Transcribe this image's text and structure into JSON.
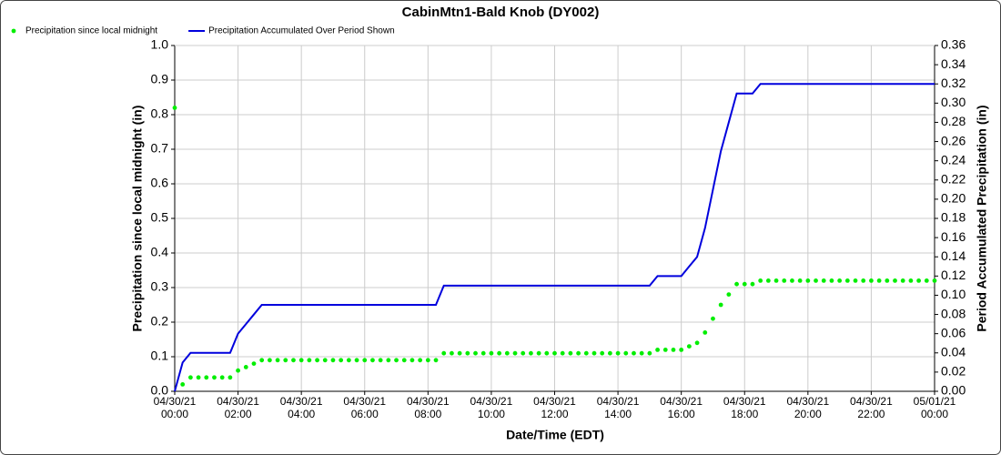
{
  "chart_data": {
    "type": "line",
    "title": "CabinMtn1-Bald Knob (DY002)",
    "x_label": "Date/Time (EDT)",
    "y_label": "Precipitation since local midnight (in)",
    "y2_label": "Period Accumulated Precipitation (in)",
    "grid": true,
    "legend": "top-left",
    "x": [
      "04/30/21 00:00",
      "04/30/21 00:15",
      "04/30/21 00:30",
      "04/30/21 00:45",
      "04/30/21 01:00",
      "04/30/21 01:15",
      "04/30/21 01:30",
      "04/30/21 01:45",
      "04/30/21 02:00",
      "04/30/21 02:15",
      "04/30/21 02:30",
      "04/30/21 02:45",
      "04/30/21 03:00",
      "04/30/21 03:15",
      "04/30/21 03:30",
      "04/30/21 03:45",
      "04/30/21 04:00",
      "04/30/21 04:15",
      "04/30/21 04:30",
      "04/30/21 04:45",
      "04/30/21 05:00",
      "04/30/21 05:15",
      "04/30/21 05:30",
      "04/30/21 05:45",
      "04/30/21 06:00",
      "04/30/21 06:15",
      "04/30/21 06:30",
      "04/30/21 06:45",
      "04/30/21 07:00",
      "04/30/21 07:15",
      "04/30/21 07:30",
      "04/30/21 07:45",
      "04/30/21 08:00",
      "04/30/21 08:15",
      "04/30/21 08:30",
      "04/30/21 08:45",
      "04/30/21 09:00",
      "04/30/21 09:15",
      "04/30/21 09:30",
      "04/30/21 09:45",
      "04/30/21 10:00",
      "04/30/21 10:15",
      "04/30/21 10:30",
      "04/30/21 10:45",
      "04/30/21 11:00",
      "04/30/21 11:15",
      "04/30/21 11:30",
      "04/30/21 11:45",
      "04/30/21 12:00",
      "04/30/21 12:15",
      "04/30/21 12:30",
      "04/30/21 12:45",
      "04/30/21 13:00",
      "04/30/21 13:15",
      "04/30/21 13:30",
      "04/30/21 13:45",
      "04/30/21 14:00",
      "04/30/21 14:15",
      "04/30/21 14:30",
      "04/30/21 14:45",
      "04/30/21 15:00",
      "04/30/21 15:15",
      "04/30/21 15:30",
      "04/30/21 15:45",
      "04/30/21 16:00",
      "04/30/21 16:15",
      "04/30/21 16:30",
      "04/30/21 16:45",
      "04/30/21 17:00",
      "04/30/21 17:15",
      "04/30/21 17:30",
      "04/30/21 17:45",
      "04/30/21 18:00",
      "04/30/21 18:15",
      "04/30/21 18:30",
      "04/30/21 18:45",
      "04/30/21 19:00",
      "04/30/21 19:15",
      "04/30/21 19:30",
      "04/30/21 19:45",
      "04/30/21 20:00",
      "04/30/21 20:15",
      "04/30/21 20:30",
      "04/30/21 20:45",
      "04/30/21 21:00",
      "04/30/21 21:15",
      "04/30/21 21:30",
      "04/30/21 21:45",
      "04/30/21 22:00",
      "04/30/21 22:15",
      "04/30/21 22:30",
      "04/30/21 22:45",
      "04/30/21 23:00",
      "04/30/21 23:15",
      "04/30/21 23:30",
      "04/30/21 23:45",
      "05/01/21 00:00"
    ],
    "xlim": [
      "04/30/21 00:00",
      "05/01/21 00:00"
    ],
    "xticks": [
      "04/30/21 00:00",
      "04/30/21 02:00",
      "04/30/21 04:00",
      "04/30/21 06:00",
      "04/30/21 08:00",
      "04/30/21 10:00",
      "04/30/21 12:00",
      "04/30/21 14:00",
      "04/30/21 16:00",
      "04/30/21 18:00",
      "04/30/21 20:00",
      "04/30/21 22:00",
      "05/01/21 00:00"
    ],
    "ylim": [
      0,
      1
    ],
    "yticks": [
      {
        "value": 0,
        "label": "0.0"
      },
      0.1,
      0.2,
      0.3,
      0.4,
      0.5,
      0.6,
      0.7,
      0.8,
      0.9,
      {
        "value": 1,
        "label": "1.0"
      }
    ],
    "y2lim": [
      0,
      0.36
    ],
    "y2ticks": [
      {
        "value": 0,
        "label": "0.00"
      },
      {
        "value": 0.02,
        "label": "0.02"
      },
      {
        "value": 0.04,
        "label": "0.04"
      },
      {
        "value": 0.06,
        "label": "0.06"
      },
      {
        "value": 0.08,
        "label": "0.08"
      },
      {
        "value": 0.1,
        "label": "0.10"
      },
      {
        "value": 0.12,
        "label": "0.12"
      },
      {
        "value": 0.14,
        "label": "0.14"
      },
      {
        "value": 0.16,
        "label": "0.16"
      },
      {
        "value": 0.18,
        "label": "0.18"
      },
      {
        "value": 0.2,
        "label": "0.20"
      },
      {
        "value": 0.22,
        "label": "0.22"
      },
      {
        "value": 0.24,
        "label": "0.24"
      },
      {
        "value": 0.26,
        "label": "0.26"
      },
      {
        "value": 0.28,
        "label": "0.28"
      },
      {
        "value": 0.3,
        "label": "0.30"
      },
      {
        "value": 0.32,
        "label": "0.32"
      },
      {
        "value": 0.34,
        "label": "0.34"
      },
      {
        "value": 0.36,
        "label": "0.36"
      }
    ],
    "series": [
      {
        "name": "Precipitation since local midnight",
        "type": "scatter",
        "color": "#00ee00",
        "axis": "y",
        "values": [
          0.82,
          0.02,
          0.04,
          0.04,
          0.04,
          0.04,
          0.04,
          0.04,
          0.06,
          0.07,
          0.08,
          0.09,
          0.09,
          0.09,
          0.09,
          0.09,
          0.09,
          0.09,
          0.09,
          0.09,
          0.09,
          0.09,
          0.09,
          0.09,
          0.09,
          0.09,
          0.09,
          0.09,
          0.09,
          0.09,
          0.09,
          0.09,
          0.09,
          0.09,
          0.11,
          0.11,
          0.11,
          0.11,
          0.11,
          0.11,
          0.11,
          0.11,
          0.11,
          0.11,
          0.11,
          0.11,
          0.11,
          0.11,
          0.11,
          0.11,
          0.11,
          0.11,
          0.11,
          0.11,
          0.11,
          0.11,
          0.11,
          0.11,
          0.11,
          0.11,
          0.11,
          0.12,
          0.12,
          0.12,
          0.12,
          0.13,
          0.14,
          0.17,
          0.21,
          0.25,
          0.28,
          0.31,
          0.31,
          0.31,
          0.32,
          0.32,
          0.32,
          0.32,
          0.32,
          0.32,
          0.32,
          0.32,
          0.32,
          0.32,
          0.32,
          0.32,
          0.32,
          0.32,
          0.32,
          0.32,
          0.32,
          0.32,
          0.32,
          0.32,
          0.32,
          0.32,
          0.32
        ]
      },
      {
        "name": "Precipitation Accumulated Over Period Shown",
        "type": "line",
        "color": "#0000dd",
        "axis": "y2",
        "values": [
          0,
          0.03,
          0.04,
          0.04,
          0.04,
          0.04,
          0.04,
          0.04,
          0.06,
          0.07,
          0.08,
          0.09,
          0.09,
          0.09,
          0.09,
          0.09,
          0.09,
          0.09,
          0.09,
          0.09,
          0.09,
          0.09,
          0.09,
          0.09,
          0.09,
          0.09,
          0.09,
          0.09,
          0.09,
          0.09,
          0.09,
          0.09,
          0.09,
          0.09,
          0.11,
          0.11,
          0.11,
          0.11,
          0.11,
          0.11,
          0.11,
          0.11,
          0.11,
          0.11,
          0.11,
          0.11,
          0.11,
          0.11,
          0.11,
          0.11,
          0.11,
          0.11,
          0.11,
          0.11,
          0.11,
          0.11,
          0.11,
          0.11,
          0.11,
          0.11,
          0.11,
          0.12,
          0.12,
          0.12,
          0.12,
          0.13,
          0.14,
          0.17,
          0.21,
          0.25,
          0.28,
          0.31,
          0.31,
          0.31,
          0.32,
          0.32,
          0.32,
          0.32,
          0.32,
          0.32,
          0.32,
          0.32,
          0.32,
          0.32,
          0.32,
          0.32,
          0.32,
          0.32,
          0.32,
          0.32,
          0.32,
          0.32,
          0.32,
          0.32,
          0.32,
          0.32,
          0.32
        ]
      }
    ]
  }
}
